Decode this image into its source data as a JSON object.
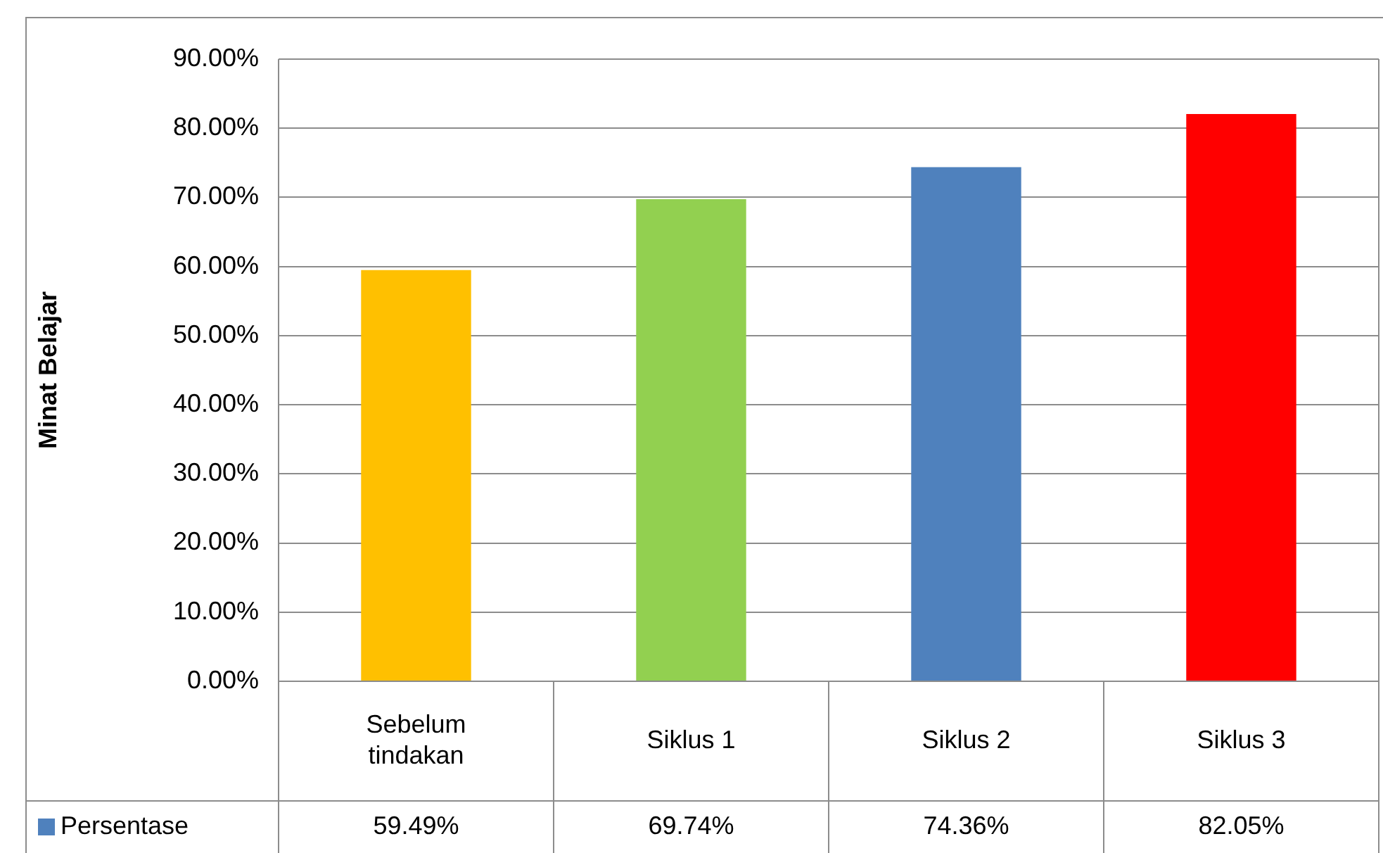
{
  "chart_data": {
    "type": "bar",
    "ylabel": "Minat Belajar",
    "categories": [
      "Sebelum tindakan",
      "Siklus 1",
      "Siklus 2",
      "Siklus 3"
    ],
    "series": [
      {
        "name": "Persentase",
        "color": "#4f81bd",
        "colors": [
          "#ffc000",
          "#92d050",
          "#4f81bd",
          "#ff0000"
        ],
        "values": [
          59.49,
          69.74,
          74.36,
          82.05
        ],
        "value_labels": [
          "59.49%",
          "69.74%",
          "74.36%",
          "82.05%"
        ]
      }
    ],
    "ylim": [
      0,
      90
    ],
    "yticks": [
      {
        "value": 0,
        "label": "0.00%"
      },
      {
        "value": 10,
        "label": "10.00%"
      },
      {
        "value": 20,
        "label": "20.00%"
      },
      {
        "value": 30,
        "label": "30.00%"
      },
      {
        "value": 40,
        "label": "40.00%"
      },
      {
        "value": 50,
        "label": "50.00%"
      },
      {
        "value": 60,
        "label": "60.00%"
      },
      {
        "value": 70,
        "label": "70.00%"
      },
      {
        "value": 80,
        "label": "80.00%"
      },
      {
        "value": 90,
        "label": "90.00%"
      }
    ],
    "grid": "y",
    "legend": "bottom"
  }
}
